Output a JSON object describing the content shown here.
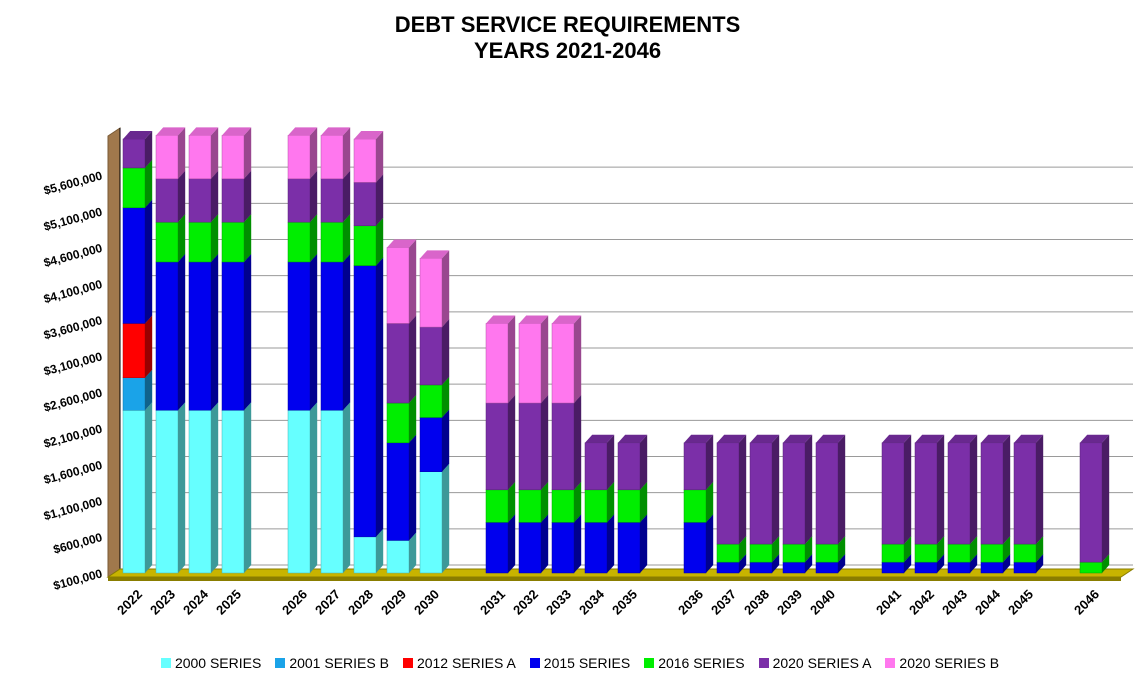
{
  "chart_data": {
    "type": "bar",
    "stacked": true,
    "three_d": true,
    "title": [
      "DEBT SERVICE REQUIREMENTS",
      "YEARS 2021-2046"
    ],
    "xlabel": "",
    "ylabel": "",
    "ylim": [
      100000,
      6100000
    ],
    "yticks": [
      100000,
      600000,
      1100000,
      1600000,
      2100000,
      2600000,
      3100000,
      3600000,
      4100000,
      4600000,
      5100000,
      5600000
    ],
    "ytick_labels": [
      "$100,000",
      "$600,000",
      "$1,100,000",
      "$1,600,000",
      "$2,100,000",
      "$2,600,000",
      "$3,100,000",
      "$3,600,000",
      "$4,100,000",
      "$4,600,000",
      "$5,100,000",
      "$5,600,000"
    ],
    "grid": true,
    "legend_position": "bottom",
    "categories": [
      "2022",
      "2023",
      "2024",
      "2025",
      "",
      "2026",
      "2027",
      "2028",
      "2029",
      "2030",
      "",
      "2031",
      "2032",
      "2033",
      "2034",
      "2035",
      "",
      "2036",
      "2037",
      "2038",
      "2039",
      "2040",
      "",
      "2041",
      "2042",
      "2043",
      "2044",
      "2045",
      "",
      "2046"
    ],
    "series": [
      {
        "name": "2000 SERIES",
        "color": "#66ffff",
        "values": [
          2250000,
          2250000,
          2250000,
          2250000,
          0,
          2250000,
          2250000,
          500000,
          450000,
          1400000,
          0,
          0,
          0,
          0,
          0,
          0,
          0,
          0,
          0,
          0,
          0,
          0,
          0,
          0,
          0,
          0,
          0,
          0,
          0,
          0
        ]
      },
      {
        "name": "2001 SERIES B",
        "color": "#1aa3e8",
        "values": [
          450000,
          0,
          0,
          0,
          0,
          0,
          0,
          0,
          0,
          0,
          0,
          0,
          0,
          0,
          0,
          0,
          0,
          0,
          0,
          0,
          0,
          0,
          0,
          0,
          0,
          0,
          0,
          0,
          0,
          0
        ]
      },
      {
        "name": "2012 SERIES A",
        "color": "#ff0000",
        "values": [
          750000,
          0,
          0,
          0,
          0,
          0,
          0,
          0,
          0,
          0,
          0,
          0,
          0,
          0,
          0,
          0,
          0,
          0,
          0,
          0,
          0,
          0,
          0,
          0,
          0,
          0,
          0,
          0,
          0,
          0
        ]
      },
      {
        "name": "2015 SERIES",
        "color": "#0000ee",
        "values": [
          1600000,
          2050000,
          2050000,
          2050000,
          0,
          2050000,
          2050000,
          3750000,
          1350000,
          750000,
          0,
          700000,
          700000,
          700000,
          700000,
          700000,
          0,
          700000,
          150000,
          150000,
          150000,
          150000,
          0,
          150000,
          150000,
          150000,
          150000,
          150000,
          0,
          0
        ]
      },
      {
        "name": "2016 SERIES",
        "color": "#00ee00",
        "values": [
          550000,
          550000,
          550000,
          550000,
          0,
          550000,
          550000,
          550000,
          550000,
          450000,
          0,
          450000,
          450000,
          450000,
          450000,
          450000,
          0,
          450000,
          250000,
          250000,
          250000,
          250000,
          0,
          250000,
          250000,
          250000,
          250000,
          250000,
          0,
          150000
        ]
      },
      {
        "name": "2020 SERIES A",
        "color": "#7b2fa8",
        "values": [
          400000,
          600000,
          600000,
          600000,
          0,
          600000,
          600000,
          600000,
          1100000,
          800000,
          0,
          1200000,
          1200000,
          1200000,
          650000,
          650000,
          0,
          650000,
          1400000,
          1400000,
          1400000,
          1400000,
          0,
          1400000,
          1400000,
          1400000,
          1400000,
          1400000,
          0,
          1650000
        ]
      },
      {
        "name": "2020 SERIES B",
        "color": "#ff77ee",
        "values": [
          0,
          600000,
          600000,
          600000,
          0,
          600000,
          600000,
          600000,
          1050000,
          950000,
          0,
          1100000,
          1100000,
          1100000,
          0,
          0,
          0,
          0,
          0,
          0,
          0,
          0,
          0,
          0,
          0,
          0,
          0,
          0,
          0,
          0
        ]
      }
    ]
  }
}
